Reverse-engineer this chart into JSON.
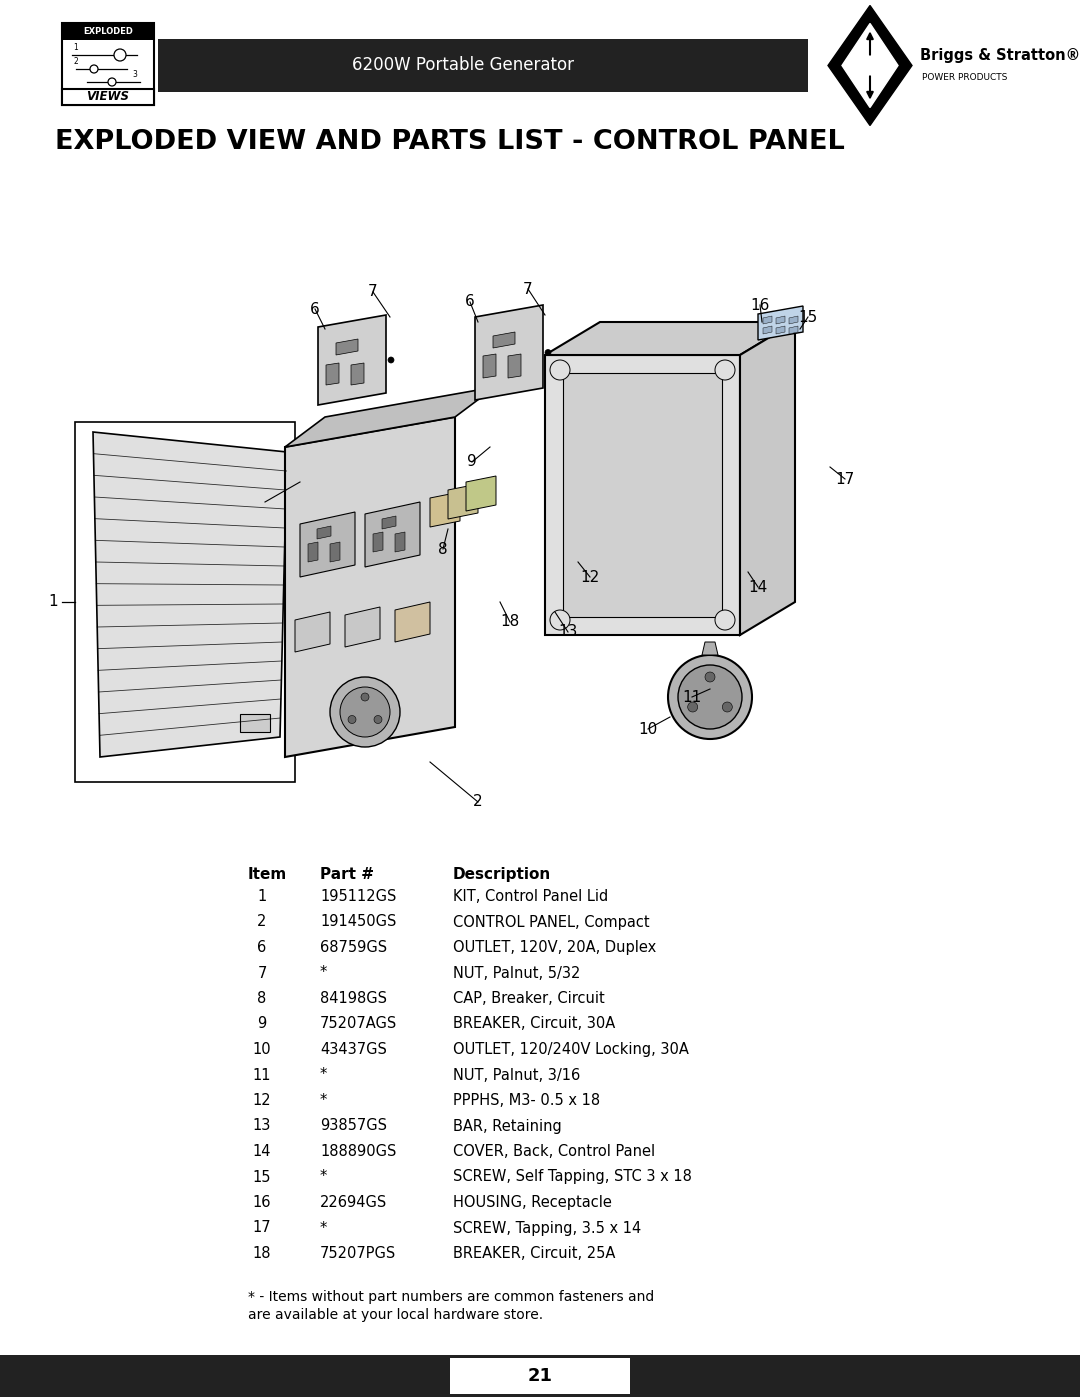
{
  "page_bg": "#ffffff",
  "header_bar_color": "#222222",
  "header_text": "6200W Portable Generator",
  "header_text_color": "#ffffff",
  "main_title": "EXPLODED VIEW AND PARTS LIST - CONTROL PANEL",
  "main_title_color": "#000000",
  "footer_bar_color": "#222222",
  "footer_text": "21",
  "footer_text_color": "#ffffff",
  "parts_data": [
    [
      "1",
      "195112GS",
      "KIT, Control Panel Lid"
    ],
    [
      "2",
      "191450GS",
      "CONTROL PANEL, Compact"
    ],
    [
      "6",
      "68759GS",
      "OUTLET, 120V, 20A, Duplex"
    ],
    [
      "7",
      "*",
      "NUT, Palnut, 5/32"
    ],
    [
      "8",
      "84198GS",
      "CAP, Breaker, Circuit"
    ],
    [
      "9",
      "75207AGS",
      "BREAKER, Circuit, 30A"
    ],
    [
      "10",
      "43437GS",
      "OUTLET, 120/240V Locking, 30A"
    ],
    [
      "11",
      "*",
      "NUT, Palnut, 3/16"
    ],
    [
      "12",
      "*",
      "PPPHS, M3- 0.5 x 18"
    ],
    [
      "13",
      "93857GS",
      "BAR, Retaining"
    ],
    [
      "14",
      "188890GS",
      "COVER, Back, Control Panel"
    ],
    [
      "15",
      "*",
      "SCREW, Self Tapping, STC 3 x 18"
    ],
    [
      "16",
      "22694GS",
      "HOUSING, Receptacle"
    ],
    [
      "17",
      "*",
      "SCREW, Tapping, 3.5 x 14"
    ],
    [
      "18",
      "75207PGS",
      "BREAKER, Circuit, 25A"
    ]
  ],
  "footnote_line1": "* - Items without part numbers are common fasteners and",
  "footnote_line2": "are available at your local hardware store."
}
